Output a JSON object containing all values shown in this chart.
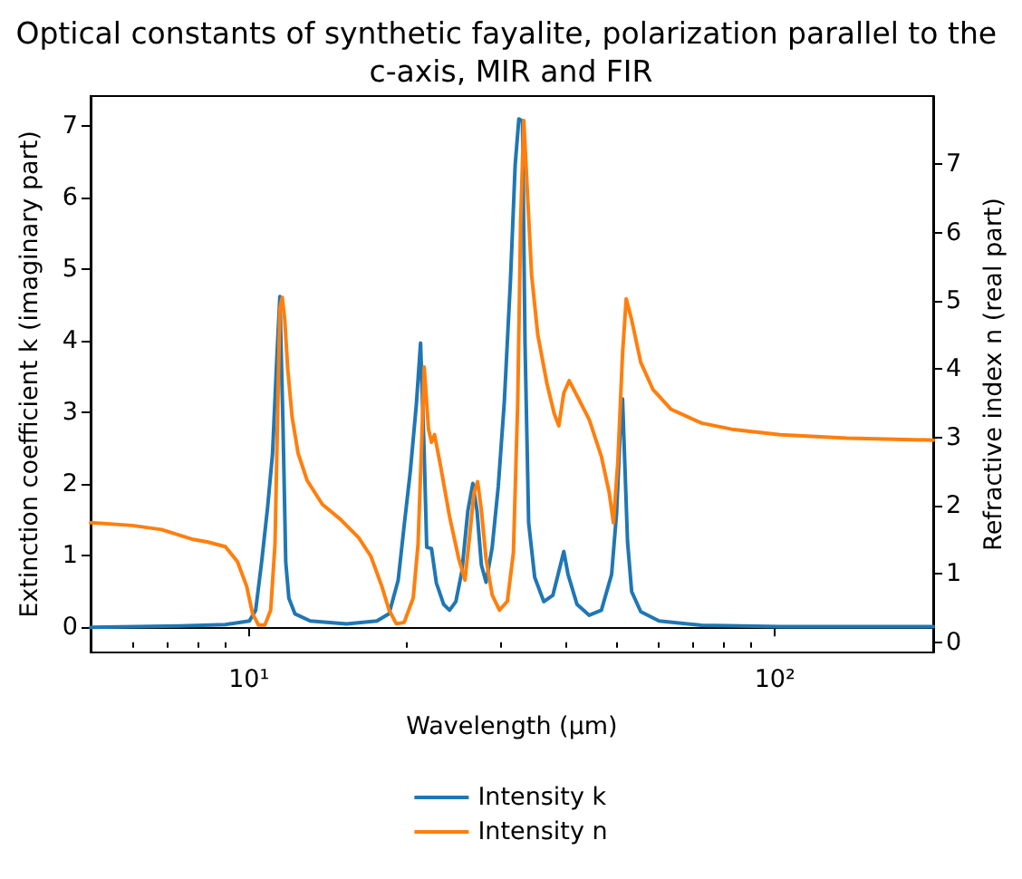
{
  "chart_data": {
    "type": "line",
    "title": "Optical constants of synthetic fayalite, polarization parallel to the c-axis, MIR and FIR",
    "xlabel": "Wavelength (μm)",
    "ylabel": "Extinction coefficient k (imaginary part)",
    "y2label": "Refractive index n (real part)",
    "log": "x",
    "legend": "bottom",
    "xlim": [
      5,
      200
    ],
    "xticks": [
      {
        "value": 5,
        "label": null
      },
      {
        "value": 6,
        "label": null
      },
      {
        "value": 7,
        "label": null
      },
      {
        "value": 8,
        "label": null
      },
      {
        "value": 9,
        "label": null
      },
      {
        "value": 10,
        "label": "10¹"
      },
      {
        "value": 20,
        "label": null
      },
      {
        "value": 30,
        "label": null
      },
      {
        "value": 40,
        "label": null
      },
      {
        "value": 50,
        "label": null
      },
      {
        "value": 60,
        "label": null
      },
      {
        "value": 70,
        "label": null
      },
      {
        "value": 80,
        "label": null
      },
      {
        "value": 90,
        "label": null
      },
      {
        "value": 100,
        "label": "10²"
      },
      {
        "value": 200,
        "label": null
      }
    ],
    "ylim": [
      -0.35,
      7.42
    ],
    "yticks": [
      0,
      1,
      2,
      3,
      4,
      5,
      6,
      7
    ],
    "y2lim": [
      -0.15,
      8.0
    ],
    "y2ticks": [
      0,
      1,
      2,
      3,
      4,
      5,
      6,
      7
    ],
    "series": [
      {
        "name": "Intensity k",
        "color": "#1f77b4",
        "x": [
          5,
          7.39,
          9.02,
          10.02,
          10.3,
          10.57,
          10.85,
          11.09,
          11.29,
          11.45,
          11.61,
          11.75,
          11.91,
          12.23,
          13.08,
          15.34,
          17.51,
          18.47,
          19.22,
          19.73,
          20.27,
          20.81,
          21.2,
          21.54,
          21.78,
          22.24,
          22.72,
          23.46,
          24.07,
          24.74,
          25.4,
          26.08,
          26.65,
          27.14,
          27.67,
          28.24,
          29.01,
          29.79,
          30.59,
          31.42,
          32.08,
          32.6,
          33.12,
          33.49,
          34.03,
          34.94,
          36.36,
          37.84,
          38.83,
          39.69,
          40.43,
          42.06,
          44.37,
          46.79,
          48.93,
          50.0,
          50.92,
          51.33,
          52.46,
          53.42,
          55.59,
          60.22,
          72.54,
          102.4,
          200
        ],
        "values": [
          0.0,
          0.02,
          0.04,
          0.09,
          0.24,
          0.91,
          1.67,
          2.43,
          3.7,
          4.62,
          2.8,
          0.91,
          0.41,
          0.19,
          0.09,
          0.05,
          0.09,
          0.19,
          0.66,
          1.42,
          2.18,
          3.11,
          3.97,
          2.43,
          1.12,
          1.1,
          0.62,
          0.32,
          0.24,
          0.36,
          0.78,
          1.63,
          2.01,
          1.63,
          0.87,
          0.63,
          1.12,
          1.97,
          3.15,
          4.84,
          6.46,
          7.1,
          7.07,
          3.97,
          1.46,
          0.7,
          0.36,
          0.45,
          0.78,
          1.06,
          0.74,
          0.32,
          0.17,
          0.24,
          0.74,
          1.59,
          2.9,
          3.19,
          1.2,
          0.5,
          0.22,
          0.09,
          0.03,
          0.01,
          0.01
        ]
      },
      {
        "name": "Intensity n",
        "color": "#ff7f0e",
        "axis": "y2",
        "x": [
          5,
          6.0,
          6.82,
          7.79,
          8.33,
          9.02,
          9.51,
          9.9,
          10.16,
          10.43,
          10.72,
          11.0,
          11.21,
          11.33,
          11.45,
          11.57,
          11.7,
          11.85,
          12.08,
          12.4,
          12.9,
          13.79,
          14.93,
          16.17,
          17.05,
          17.89,
          18.47,
          19.07,
          19.73,
          20.53,
          20.97,
          21.27,
          21.54,
          21.95,
          22.24,
          22.54,
          23.13,
          24.07,
          25.06,
          25.75,
          26.29,
          26.79,
          27.22,
          27.67,
          28.24,
          29.01,
          29.95,
          31.0,
          31.83,
          32.44,
          32.86,
          33.31,
          33.83,
          34.47,
          35.42,
          36.86,
          38.05,
          38.83,
          39.69,
          40.64,
          42.06,
          44.37,
          46.79,
          48.42,
          49.32,
          50.28,
          51.33,
          52.16,
          53.42,
          55.59,
          58.65,
          63.52,
          72.54,
          82.8,
          102.4,
          137.2,
          200
        ],
        "values": [
          1.75,
          1.71,
          1.65,
          1.51,
          1.47,
          1.4,
          1.18,
          0.82,
          0.42,
          0.25,
          0.25,
          0.47,
          1.44,
          3.21,
          4.89,
          5.05,
          4.72,
          4.01,
          3.3,
          2.77,
          2.37,
          2.02,
          1.8,
          1.53,
          1.26,
          0.82,
          0.47,
          0.27,
          0.29,
          0.65,
          1.44,
          2.77,
          4.03,
          3.12,
          2.93,
          3.04,
          2.59,
          1.84,
          1.22,
          0.91,
          1.57,
          2.19,
          2.35,
          1.93,
          1.22,
          0.69,
          0.47,
          0.6,
          1.31,
          3.52,
          6.18,
          7.64,
          6.62,
          5.38,
          4.5,
          3.79,
          3.35,
          3.17,
          3.65,
          3.83,
          3.61,
          3.26,
          2.72,
          2.19,
          1.75,
          2.64,
          4.23,
          5.03,
          4.72,
          4.1,
          3.7,
          3.41,
          3.21,
          3.12,
          3.04,
          2.99,
          2.96
        ]
      }
    ]
  }
}
